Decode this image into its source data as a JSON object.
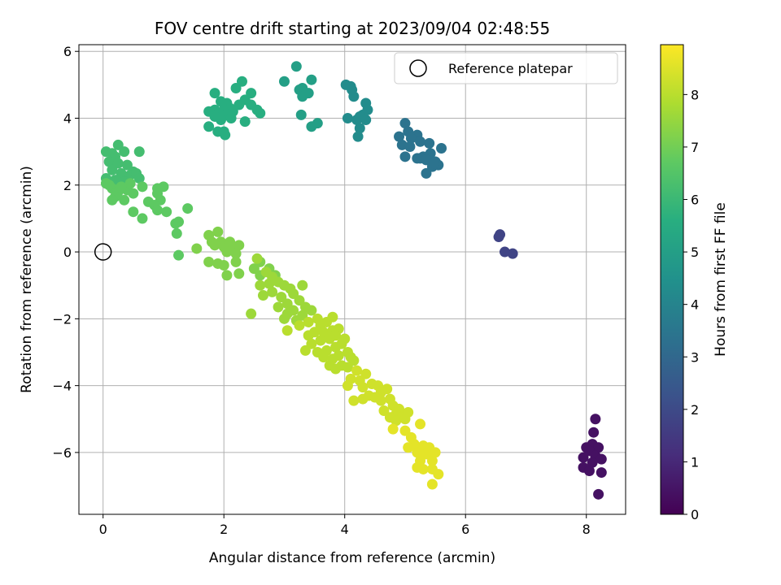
{
  "chart_data": {
    "type": "scatter",
    "title": "FOV centre drift starting at 2023/09/04 02:48:55",
    "xlabel": "Angular distance from reference (arcmin)",
    "ylabel": "Rotation from reference (arcmin)",
    "xlim": [
      -0.4,
      8.65
    ],
    "ylim": [
      -7.85,
      6.2
    ],
    "xticks": [
      0,
      2,
      4,
      6,
      8
    ],
    "yticks": [
      -6,
      -4,
      -2,
      0,
      2,
      4,
      6
    ],
    "grid": true,
    "legend": {
      "position": "top-right",
      "entries": [
        "Reference platepar"
      ]
    },
    "colorbar": {
      "label": "Hours from first FF file",
      "min": 0,
      "max": 8.95,
      "ticks": [
        0,
        1,
        2,
        3,
        4,
        5,
        6,
        7,
        8
      ],
      "colormap": "viridis"
    },
    "reference_point": {
      "x": 0,
      "y": 0
    },
    "clusters": [
      {
        "hours": 0.4,
        "points": [
          [
            8.15,
            -5.0
          ],
          [
            8.12,
            -5.4
          ],
          [
            8.1,
            -5.75
          ],
          [
            8.2,
            -5.85
          ],
          [
            8.0,
            -5.85
          ],
          [
            8.05,
            -5.95
          ],
          [
            8.15,
            -6.1
          ],
          [
            7.95,
            -6.15
          ],
          [
            8.25,
            -6.2
          ],
          [
            8.1,
            -6.3
          ],
          [
            7.95,
            -6.45
          ],
          [
            8.05,
            -6.55
          ],
          [
            8.25,
            -6.6
          ],
          [
            8.2,
            -7.25
          ]
        ]
      },
      {
        "hours": 1.8,
        "points": [
          [
            6.55,
            0.45
          ],
          [
            6.57,
            0.52
          ],
          [
            6.65,
            0.0
          ],
          [
            6.78,
            -0.05
          ]
        ]
      },
      {
        "hours": 3.4,
        "points": [
          [
            5.0,
            3.85
          ],
          [
            5.05,
            3.6
          ],
          [
            5.2,
            3.5
          ],
          [
            4.9,
            3.45
          ],
          [
            5.1,
            3.4
          ],
          [
            5.25,
            3.3
          ],
          [
            4.95,
            3.2
          ],
          [
            5.08,
            3.15
          ],
          [
            5.4,
            3.25
          ],
          [
            5.6,
            3.1
          ],
          [
            5.42,
            2.95
          ],
          [
            5.3,
            2.85
          ],
          [
            5.25,
            2.8
          ],
          [
            5.0,
            2.85
          ],
          [
            5.35,
            2.75
          ],
          [
            5.5,
            2.7
          ],
          [
            5.45,
            2.55
          ],
          [
            5.55,
            2.6
          ],
          [
            5.35,
            2.35
          ],
          [
            5.2,
            2.8
          ],
          [
            5.48,
            2.65
          ]
        ]
      },
      {
        "hours": 4.3,
        "points": [
          [
            4.02,
            5.0
          ],
          [
            4.1,
            4.95
          ],
          [
            4.15,
            4.65
          ],
          [
            4.35,
            4.45
          ],
          [
            4.38,
            4.25
          ],
          [
            4.3,
            4.1
          ],
          [
            4.25,
            4.05
          ],
          [
            4.05,
            4.0
          ],
          [
            4.2,
            3.95
          ],
          [
            4.35,
            3.95
          ],
          [
            4.25,
            3.7
          ],
          [
            4.22,
            3.45
          ],
          [
            4.12,
            4.85
          ]
        ]
      },
      {
        "hours": 5.0,
        "points": [
          [
            3.2,
            5.55
          ],
          [
            3.45,
            5.15
          ],
          [
            3.0,
            5.1
          ],
          [
            3.3,
            4.9
          ],
          [
            3.25,
            4.85
          ],
          [
            3.4,
            4.75
          ],
          [
            3.3,
            4.65
          ],
          [
            3.28,
            4.1
          ],
          [
            3.55,
            3.85
          ],
          [
            3.45,
            3.75
          ]
        ]
      },
      {
        "hours": 5.6,
        "points": [
          [
            2.3,
            5.1
          ],
          [
            2.2,
            4.9
          ],
          [
            1.85,
            4.75
          ],
          [
            2.45,
            4.75
          ],
          [
            2.35,
            4.55
          ],
          [
            1.95,
            4.5
          ],
          [
            2.05,
            4.45
          ],
          [
            2.25,
            4.4
          ],
          [
            2.45,
            4.4
          ],
          [
            2.1,
            4.3
          ],
          [
            1.85,
            4.25
          ],
          [
            2.0,
            4.25
          ],
          [
            2.15,
            4.2
          ],
          [
            2.55,
            4.25
          ],
          [
            1.75,
            4.2
          ],
          [
            1.92,
            4.15
          ],
          [
            2.05,
            4.1
          ],
          [
            2.6,
            4.15
          ],
          [
            1.85,
            4.05
          ],
          [
            2.12,
            4.0
          ],
          [
            1.95,
            3.95
          ],
          [
            2.35,
            3.9
          ],
          [
            1.75,
            3.75
          ],
          [
            1.9,
            3.6
          ],
          [
            2.0,
            3.6
          ],
          [
            2.02,
            3.5
          ]
        ]
      },
      {
        "hours": 6.2,
        "points": [
          [
            0.05,
            3.0
          ],
          [
            0.15,
            2.95
          ],
          [
            0.25,
            3.2
          ],
          [
            0.2,
            2.85
          ],
          [
            0.35,
            3.0
          ],
          [
            0.6,
            3.0
          ],
          [
            0.1,
            2.7
          ],
          [
            0.25,
            2.65
          ],
          [
            0.4,
            2.6
          ],
          [
            0.5,
            2.4
          ],
          [
            0.15,
            2.45
          ],
          [
            0.3,
            2.35
          ],
          [
            0.45,
            2.3
          ],
          [
            0.55,
            2.35
          ],
          [
            0.05,
            2.2
          ],
          [
            0.2,
            2.15
          ],
          [
            0.35,
            2.1
          ],
          [
            0.6,
            2.2
          ]
        ]
      },
      {
        "hours": 6.7,
        "points": [
          [
            0.05,
            2.05
          ],
          [
            0.15,
            1.9
          ],
          [
            0.25,
            1.8
          ],
          [
            0.4,
            1.85
          ],
          [
            0.5,
            1.75
          ],
          [
            0.2,
            1.65
          ],
          [
            0.35,
            1.55
          ],
          [
            0.15,
            1.55
          ],
          [
            0.65,
            1.95
          ],
          [
            0.45,
            2.05
          ],
          [
            0.3,
            1.95
          ],
          [
            0.1,
            2.0
          ],
          [
            0.75,
            1.5
          ],
          [
            0.9,
            1.9
          ],
          [
            1.0,
            1.95
          ],
          [
            0.9,
            1.75
          ],
          [
            0.95,
            1.55
          ],
          [
            0.85,
            1.4
          ],
          [
            0.5,
            1.2
          ],
          [
            0.65,
            1.0
          ],
          [
            0.9,
            1.25
          ],
          [
            1.05,
            1.2
          ],
          [
            1.2,
            0.85
          ],
          [
            1.25,
            0.9
          ],
          [
            1.4,
            1.3
          ],
          [
            1.22,
            0.55
          ],
          [
            1.25,
            -0.1
          ]
        ]
      },
      {
        "hours": 7.2,
        "points": [
          [
            1.55,
            0.1
          ],
          [
            1.75,
            0.5
          ],
          [
            1.8,
            0.3
          ],
          [
            1.85,
            0.2
          ],
          [
            1.9,
            0.6
          ],
          [
            1.95,
            0.3
          ],
          [
            2.0,
            0.15
          ],
          [
            2.1,
            0.3
          ],
          [
            2.15,
            0.1
          ],
          [
            2.25,
            0.2
          ],
          [
            2.05,
            0.0
          ],
          [
            2.2,
            -0.05
          ],
          [
            1.75,
            -0.3
          ],
          [
            1.9,
            -0.35
          ],
          [
            2.0,
            -0.4
          ],
          [
            2.05,
            -0.7
          ],
          [
            2.2,
            -0.3
          ],
          [
            2.25,
            -0.65
          ],
          [
            2.5,
            -0.5
          ],
          [
            2.6,
            -0.3
          ],
          [
            2.6,
            -0.7
          ],
          [
            2.75,
            -0.5
          ],
          [
            2.85,
            -0.7
          ]
        ]
      },
      {
        "hours": 7.6,
        "points": [
          [
            2.55,
            -0.2
          ],
          [
            2.7,
            -0.6
          ],
          [
            2.8,
            -0.75
          ],
          [
            2.6,
            -1.0
          ],
          [
            2.75,
            -0.95
          ],
          [
            2.9,
            -0.9
          ],
          [
            3.0,
            -1.0
          ],
          [
            3.1,
            -1.1
          ],
          [
            2.65,
            -1.3
          ],
          [
            2.8,
            -1.2
          ],
          [
            2.95,
            -1.35
          ],
          [
            3.15,
            -1.25
          ],
          [
            2.45,
            -1.85
          ],
          [
            2.9,
            -1.65
          ],
          [
            3.05,
            -1.55
          ],
          [
            3.25,
            -1.45
          ],
          [
            3.3,
            -1.0
          ],
          [
            3.15,
            -1.75
          ],
          [
            3.05,
            -1.85
          ],
          [
            3.0,
            -2.0
          ],
          [
            3.2,
            -2.05
          ],
          [
            3.35,
            -1.65
          ],
          [
            3.45,
            -1.75
          ],
          [
            3.3,
            -1.9
          ]
        ]
      },
      {
        "hours": 8.0,
        "points": [
          [
            3.05,
            -2.35
          ],
          [
            3.25,
            -2.2
          ],
          [
            3.4,
            -2.1
          ],
          [
            3.55,
            -2.0
          ],
          [
            3.6,
            -2.2
          ],
          [
            3.7,
            -2.1
          ],
          [
            3.8,
            -1.95
          ],
          [
            3.4,
            -2.5
          ],
          [
            3.5,
            -2.4
          ],
          [
            3.65,
            -2.4
          ],
          [
            3.8,
            -2.35
          ],
          [
            3.9,
            -2.3
          ],
          [
            3.35,
            -2.95
          ],
          [
            3.45,
            -2.75
          ],
          [
            3.6,
            -2.65
          ],
          [
            3.75,
            -2.6
          ],
          [
            3.85,
            -2.5
          ],
          [
            3.55,
            -3.0
          ],
          [
            3.7,
            -2.95
          ],
          [
            3.85,
            -2.85
          ],
          [
            3.95,
            -2.75
          ],
          [
            4.0,
            -2.6
          ],
          [
            3.65,
            -3.15
          ],
          [
            3.8,
            -3.2
          ],
          [
            3.9,
            -3.1
          ],
          [
            4.05,
            -3.0
          ],
          [
            4.15,
            -3.25
          ],
          [
            3.75,
            -3.4
          ],
          [
            3.95,
            -3.4
          ],
          [
            4.05,
            -3.45
          ],
          [
            3.85,
            -3.5
          ],
          [
            4.1,
            -3.15
          ]
        ]
      },
      {
        "hours": 8.3,
        "points": [
          [
            4.2,
            -3.55
          ],
          [
            4.35,
            -3.65
          ],
          [
            4.1,
            -3.8
          ],
          [
            4.25,
            -3.85
          ],
          [
            4.45,
            -3.95
          ],
          [
            4.05,
            -4.0
          ],
          [
            4.3,
            -4.05
          ],
          [
            4.55,
            -4.0
          ],
          [
            4.6,
            -4.2
          ],
          [
            4.7,
            -4.1
          ],
          [
            4.4,
            -4.3
          ],
          [
            4.5,
            -4.35
          ],
          [
            4.15,
            -4.45
          ],
          [
            4.3,
            -4.4
          ],
          [
            4.6,
            -4.45
          ],
          [
            4.75,
            -4.4
          ],
          [
            4.8,
            -4.6
          ],
          [
            4.9,
            -4.7
          ],
          [
            4.65,
            -4.75
          ],
          [
            4.85,
            -4.85
          ],
          [
            4.95,
            -4.95
          ],
          [
            5.05,
            -4.8
          ],
          [
            4.75,
            -4.95
          ],
          [
            4.85,
            -5.05
          ],
          [
            5.0,
            -5.0
          ]
        ]
      },
      {
        "hours": 8.6,
        "points": [
          [
            5.25,
            -5.15
          ],
          [
            4.8,
            -5.3
          ],
          [
            5.0,
            -5.35
          ],
          [
            5.1,
            -5.55
          ],
          [
            5.15,
            -5.75
          ],
          [
            5.05,
            -5.85
          ],
          [
            5.3,
            -5.8
          ],
          [
            5.4,
            -5.85
          ],
          [
            5.2,
            -6.0
          ],
          [
            5.35,
            -6.05
          ],
          [
            5.5,
            -6.0
          ],
          [
            5.25,
            -6.25
          ],
          [
            5.45,
            -6.25
          ],
          [
            5.2,
            -6.45
          ],
          [
            5.3,
            -6.5
          ],
          [
            5.45,
            -6.5
          ],
          [
            5.55,
            -6.65
          ],
          [
            5.45,
            -6.95
          ]
        ]
      }
    ]
  }
}
